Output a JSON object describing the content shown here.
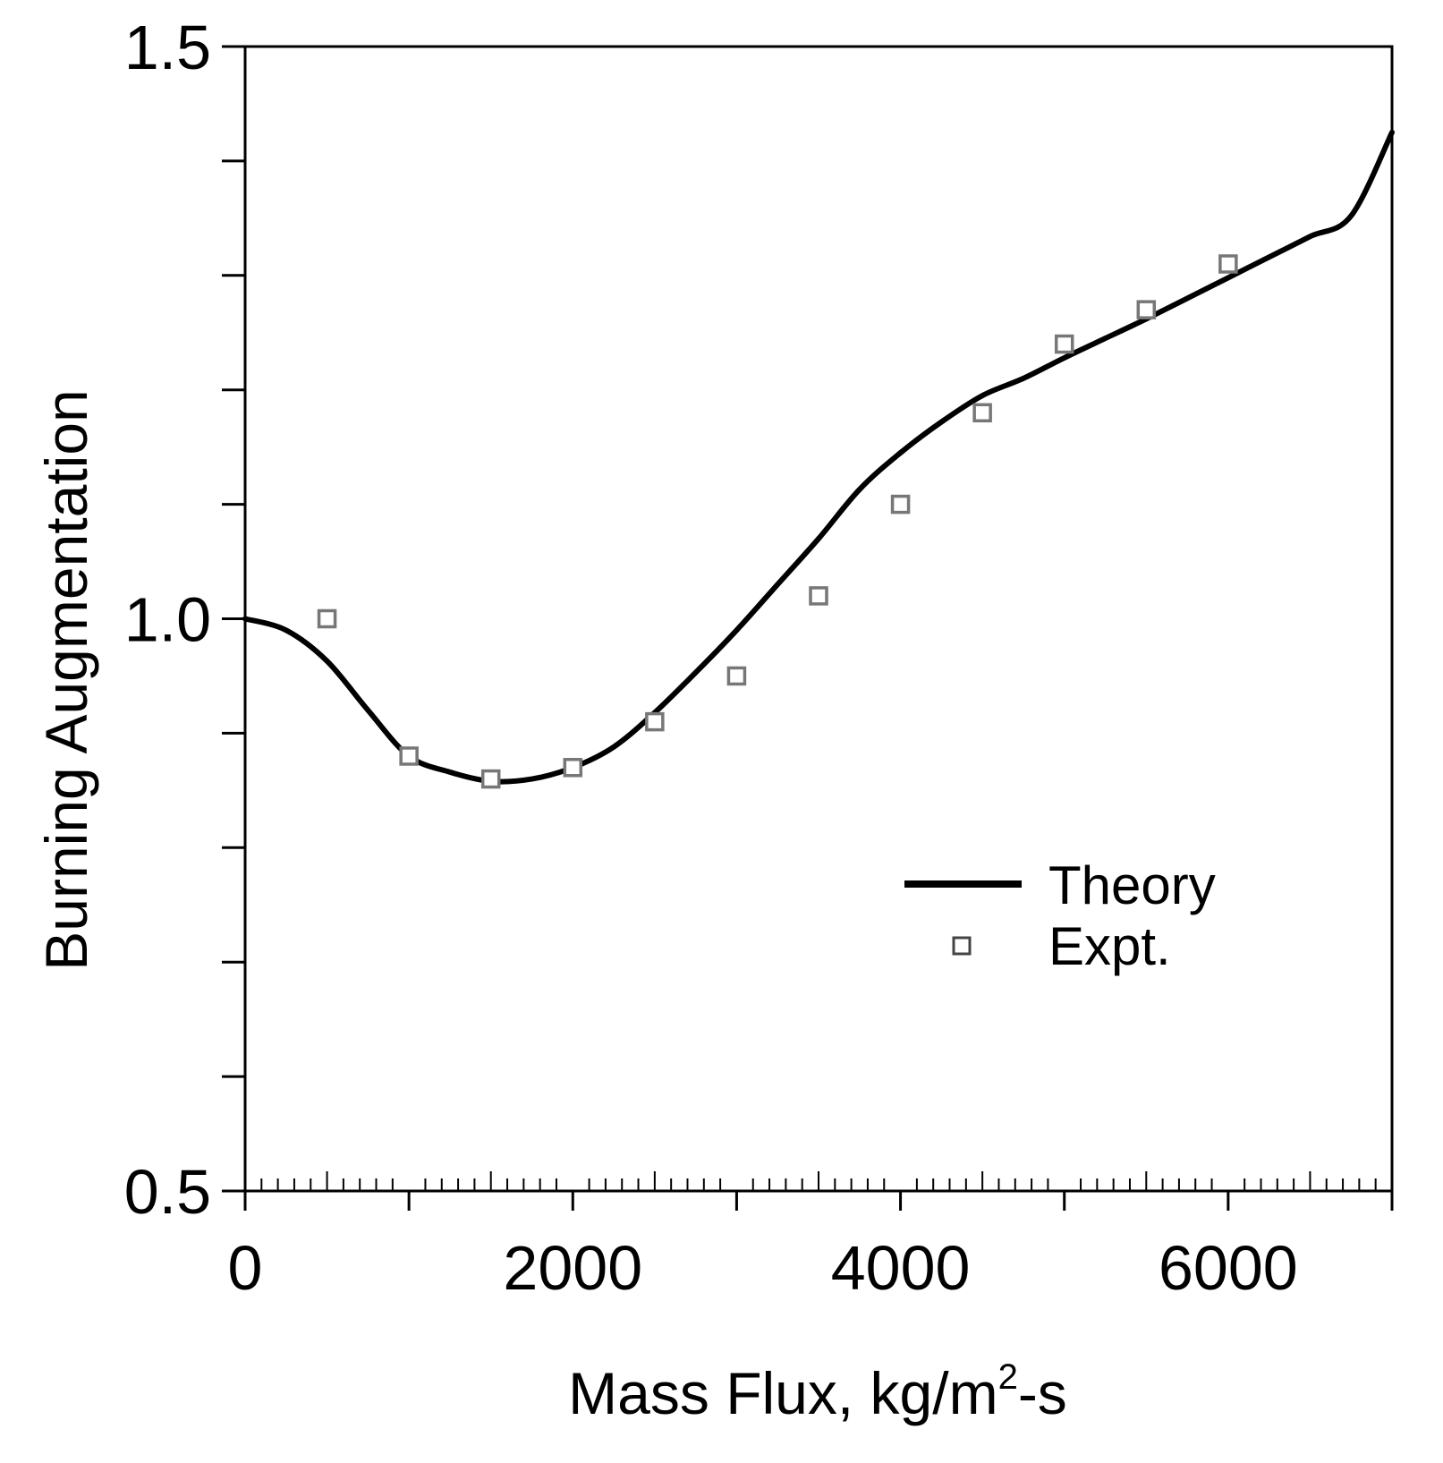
{
  "chart_data": {
    "type": "line",
    "xlabel": {
      "main": "Mass Flux, kg/m",
      "sup": "2",
      "tail": "-s"
    },
    "ylabel": "Burning Augmentation",
    "xlim": [
      0,
      7000
    ],
    "ylim": [
      0.5,
      1.5
    ],
    "x_ticks": [
      0,
      2000,
      4000,
      6000
    ],
    "x_tick_labels": [
      "0",
      "2000",
      "4000",
      "6000"
    ],
    "y_ticks": [
      0.5,
      1.0,
      1.5
    ],
    "y_tick_labels": [
      "0.5",
      "1.0",
      "1.5"
    ],
    "grid": false,
    "legend_position": "center-right",
    "series": [
      {
        "name": "Theory",
        "kind": "line",
        "color": "#000000",
        "x": [
          0,
          250,
          500,
          750,
          1000,
          1250,
          1500,
          1750,
          2000,
          2250,
          2500,
          2750,
          3000,
          3250,
          3500,
          3750,
          4000,
          4250,
          4500,
          4750,
          5000,
          5250,
          5500,
          5750,
          6000,
          6250,
          6500,
          6750,
          7000
        ],
        "y": [
          1.0,
          0.99,
          0.963,
          0.92,
          0.88,
          0.866,
          0.858,
          0.86,
          0.87,
          0.888,
          0.918,
          0.953,
          0.99,
          1.03,
          1.07,
          1.113,
          1.145,
          1.172,
          1.195,
          1.21,
          1.228,
          1.245,
          1.262,
          1.28,
          1.298,
          1.316,
          1.334,
          1.352,
          1.425
        ]
      },
      {
        "name": "Expt.",
        "kind": "scatter",
        "marker": "square",
        "color": "#777777",
        "x": [
          500,
          1000,
          1500,
          2000,
          2500,
          3000,
          3500,
          4000,
          4500,
          5000,
          5500,
          6000
        ],
        "y": [
          1.0,
          0.88,
          0.86,
          0.87,
          0.91,
          0.95,
          1.02,
          1.1,
          1.18,
          1.24,
          1.27,
          1.31
        ]
      }
    ]
  }
}
